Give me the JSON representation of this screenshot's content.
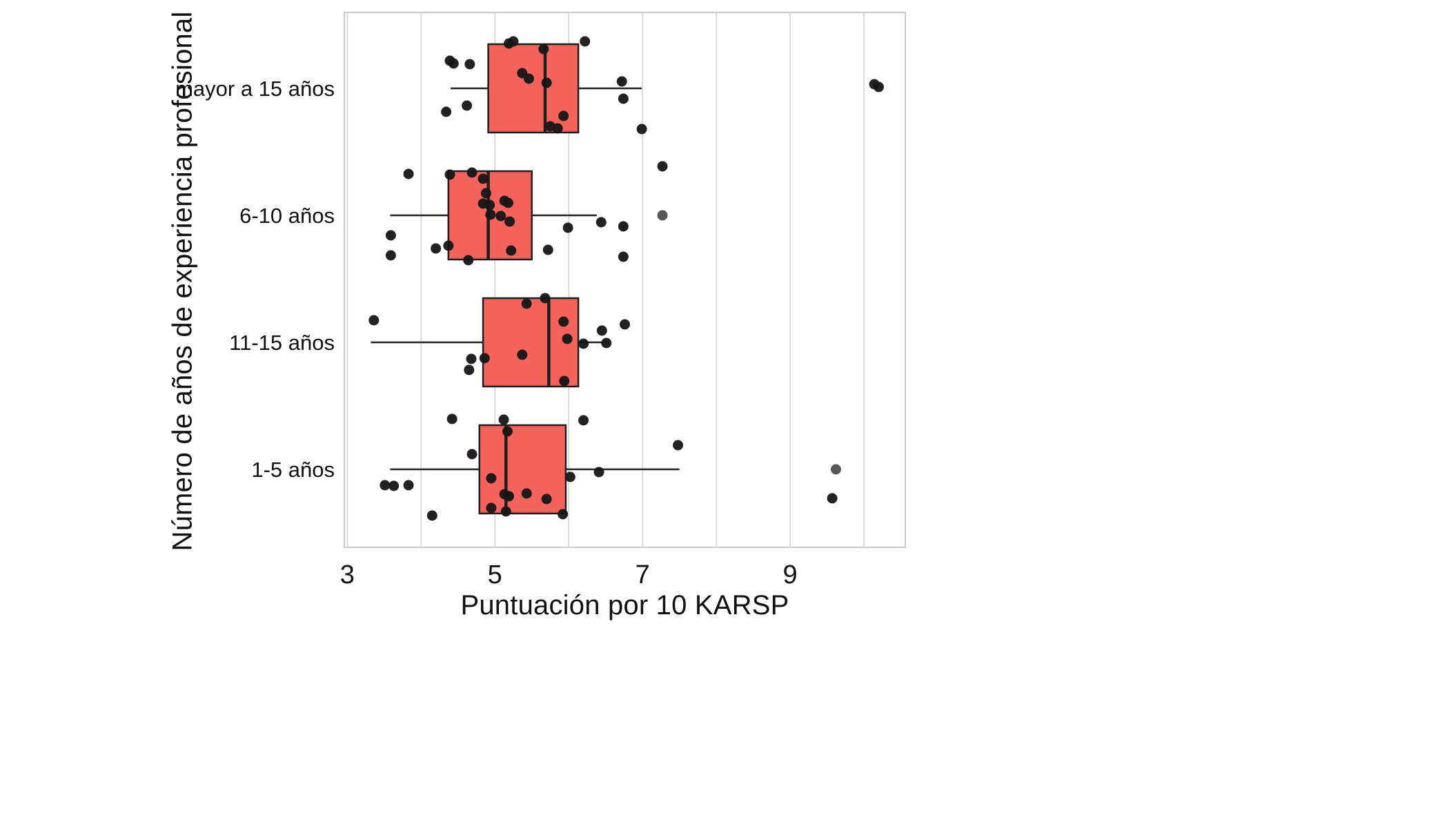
{
  "chart_data": {
    "type": "boxplot",
    "orientation": "horizontal",
    "title": "",
    "xlabel": "Puntuación por 10 KARSP",
    "ylabel": "Número de años de experiencia profesional",
    "x_ticks": [
      3,
      5,
      7,
      9
    ],
    "x_gridlines": [
      3,
      4,
      5,
      6,
      7,
      8,
      9,
      10
    ],
    "xlim": [
      2.96,
      10.56
    ],
    "grid": true,
    "legend": "none",
    "categories": [
      "mayor a 15 años",
      "6-10 años",
      "11-15 años",
      "1-5 años"
    ],
    "series": [
      {
        "category": "mayor a 15 años",
        "whisker_low": 4.4,
        "q1": 4.91,
        "median": 5.68,
        "q3": 6.13,
        "whisker_high": 6.99,
        "points": [
          [
            5.19,
            -65
          ],
          [
            5.25,
            -68
          ],
          [
            6.22,
            -68
          ],
          [
            4.39,
            -40
          ],
          [
            4.44,
            -36
          ],
          [
            4.66,
            -35
          ],
          [
            5.66,
            -57
          ],
          [
            5.37,
            -22
          ],
          [
            5.46,
            -14
          ],
          [
            5.7,
            -8
          ],
          [
            6.72,
            -10
          ],
          [
            4.34,
            34
          ],
          [
            4.62,
            25
          ],
          [
            5.93,
            40
          ],
          [
            5.75,
            55
          ],
          [
            5.85,
            58
          ],
          [
            6.99,
            59
          ],
          [
            6.74,
            15
          ],
          [
            10.14,
            -6
          ],
          [
            10.2,
            -2
          ]
        ]
      },
      {
        "category": "6-10 años",
        "whisker_low": 3.58,
        "q1": 4.37,
        "median": 4.91,
        "q3": 5.5,
        "whisker_high": 6.38,
        "points": [
          [
            7.27,
            -71
          ],
          [
            3.83,
            -60
          ],
          [
            4.39,
            -59
          ],
          [
            4.69,
            -62
          ],
          [
            4.84,
            -53
          ],
          [
            4.88,
            -32
          ],
          [
            4.84,
            -17
          ],
          [
            4.93,
            -15
          ],
          [
            5.13,
            -21
          ],
          [
            5.18,
            -18
          ],
          [
            4.94,
            -1
          ],
          [
            5.08,
            1
          ],
          [
            5.2,
            9
          ],
          [
            6.44,
            10
          ],
          [
            6.74,
            16
          ],
          [
            5.99,
            18
          ],
          [
            3.59,
            29
          ],
          [
            4.2,
            48
          ],
          [
            4.37,
            44
          ],
          [
            5.22,
            51
          ],
          [
            5.72,
            50
          ],
          [
            4.64,
            65
          ],
          [
            3.59,
            58
          ],
          [
            6.74,
            60
          ],
          [
            7.27,
            0,
            "g"
          ]
        ]
      },
      {
        "category": "11-15 años",
        "whisker_low": 3.32,
        "q1": 4.84,
        "median": 5.73,
        "q3": 6.13,
        "whisker_high": 6.55,
        "points": [
          [
            5.43,
            -56
          ],
          [
            5.68,
            -64
          ],
          [
            3.36,
            -32
          ],
          [
            5.93,
            -30
          ],
          [
            5.98,
            -5
          ],
          [
            6.2,
            2
          ],
          [
            6.45,
            -17
          ],
          [
            6.51,
            1
          ],
          [
            6.76,
            -26
          ],
          [
            5.37,
            18
          ],
          [
            4.68,
            24
          ],
          [
            4.86,
            23
          ],
          [
            4.65,
            40
          ],
          [
            5.94,
            56
          ]
        ]
      },
      {
        "category": "1-5 años",
        "whisker_low": 3.58,
        "q1": 4.79,
        "median": 5.15,
        "q3": 5.96,
        "whisker_high": 7.5,
        "points": [
          [
            4.42,
            -73
          ],
          [
            6.2,
            -71
          ],
          [
            5.12,
            -72
          ],
          [
            5.17,
            -55
          ],
          [
            7.48,
            -35
          ],
          [
            4.69,
            -22
          ],
          [
            6.41,
            4
          ],
          [
            4.95,
            13
          ],
          [
            3.51,
            23
          ],
          [
            3.63,
            24
          ],
          [
            3.83,
            23
          ],
          [
            6.02,
            11
          ],
          [
            5.13,
            36
          ],
          [
            5.19,
            39
          ],
          [
            5.43,
            35
          ],
          [
            5.7,
            43
          ],
          [
            4.95,
            56
          ],
          [
            5.15,
            61
          ],
          [
            5.92,
            65
          ],
          [
            4.15,
            67
          ],
          [
            9.62,
            0,
            "g"
          ],
          [
            9.57,
            42
          ]
        ]
      }
    ],
    "colors": {
      "box_fill": "#F4645C",
      "box_border": "#1f1f1f",
      "median": "#1f1f1f",
      "whisker": "#1f1f1f",
      "point": "#161616",
      "point_grey": "#4f4f4f",
      "grid": "#d9d9d9",
      "panel_border": "#c9c9c9",
      "panel_bg": "#ffffff",
      "text": "#111111"
    }
  }
}
